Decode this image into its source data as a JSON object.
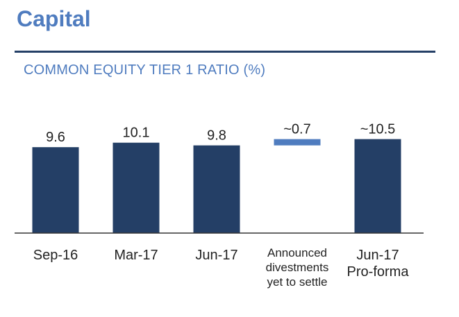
{
  "header": {
    "title": "Capital",
    "subtitle": "COMMON EQUITY TIER 1 RATIO (%)"
  },
  "chart_data": {
    "type": "bar",
    "title": "COMMON EQUITY TIER 1 RATIO (%)",
    "categories": [
      "Sep-16",
      "Mar-17",
      "Jun-17",
      "Announced divestments yet to settle",
      "Jun-17 Pro-forma"
    ],
    "category_lines": [
      [
        "Sep-16"
      ],
      [
        "Mar-17"
      ],
      [
        "Jun-17"
      ],
      [
        "Announced",
        "divestments",
        "yet to settle"
      ],
      [
        "Jun-17",
        "Pro-forma"
      ]
    ],
    "values": [
      9.6,
      10.1,
      9.8,
      0.7,
      10.5
    ],
    "data_labels": [
      "9.6",
      "10.1",
      "9.8",
      "~0.7",
      "~10.5"
    ],
    "bar_kinds": [
      "total",
      "total",
      "total",
      "increment",
      "total"
    ],
    "increment_base": 9.8,
    "ylim": [
      0,
      12.5
    ],
    "grid": false,
    "legend": "none",
    "colors": {
      "total": "#243f66",
      "increment": "#4f7cbf",
      "axis": "#333333"
    }
  }
}
